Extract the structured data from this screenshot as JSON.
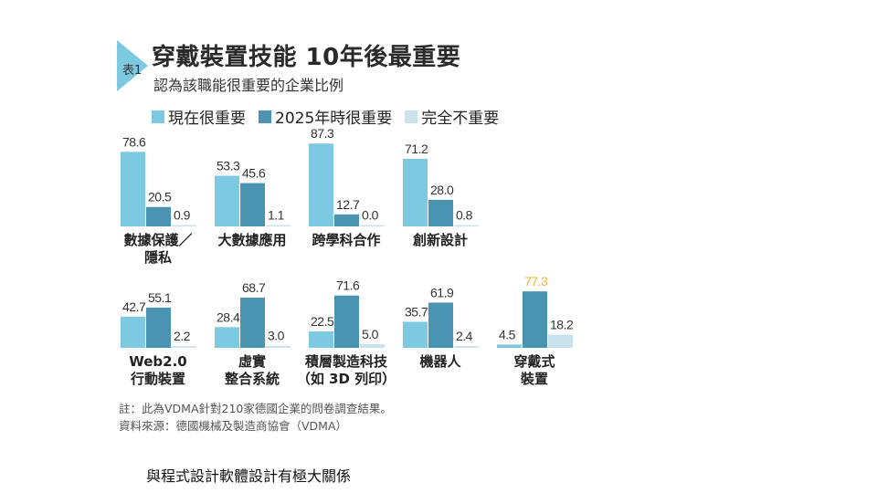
{
  "header": {
    "tag": "表1",
    "title": "穿戴裝置技能  10年後最重要",
    "subtitle": "認為該職能很重要的企業比例"
  },
  "colors": {
    "now": "#7dc9e2",
    "future": "#4a93b1",
    "none": "#c9e3ee",
    "highlight": "#f0b433",
    "arrow": "#7dc9e2"
  },
  "chart_data": {
    "type": "bar",
    "title": "穿戴裝置技能  10年後最重要",
    "subtitle": "認為該職能很重要的企業比例",
    "unit": "%",
    "ylim": [
      0,
      100
    ],
    "legend": [
      {
        "key": "now",
        "label": "現在很重要"
      },
      {
        "key": "future",
        "label": "2025年時很重要"
      },
      {
        "key": "none",
        "label": "完全不重要"
      }
    ],
    "series_names": [
      "現在很重要",
      "2025年時很重要",
      "完全不重要"
    ],
    "categories": [
      {
        "lines": [
          "數據保護／",
          "隱私"
        ],
        "values": [
          78.6,
          20.5,
          0.9
        ],
        "labels": [
          "78.6",
          "20.5",
          "0.9"
        ]
      },
      {
        "lines": [
          "大數據應用"
        ],
        "values": [
          53.3,
          45.6,
          1.1
        ],
        "labels": [
          "53.3",
          "45.6",
          "1.1"
        ]
      },
      {
        "lines": [
          "跨學科合作"
        ],
        "values": [
          87.3,
          12.7,
          0.0
        ],
        "labels": [
          "87.3",
          "12.7",
          "0.0"
        ]
      },
      {
        "lines": [
          "創新設計"
        ],
        "values": [
          71.2,
          28.0,
          0.8
        ],
        "labels": [
          "71.2",
          "28.0",
          "0.8"
        ]
      },
      {
        "lines": [
          "Web2.0",
          "行動裝置"
        ],
        "values": [
          42.7,
          55.1,
          2.2
        ],
        "labels": [
          "42.7",
          "55.1",
          "2.2"
        ]
      },
      {
        "lines": [
          "虛實",
          "整合系統"
        ],
        "values": [
          28.4,
          68.7,
          3.0
        ],
        "labels": [
          "28.4",
          "68.7",
          "3.0"
        ]
      },
      {
        "lines": [
          "積層製造科技",
          "（如 3D 列印）"
        ],
        "values": [
          22.5,
          71.6,
          5.0
        ],
        "labels": [
          "22.5",
          "71.6",
          "5.0"
        ]
      },
      {
        "lines": [
          "機器人"
        ],
        "values": [
          35.7,
          61.9,
          2.4
        ],
        "labels": [
          "35.7",
          "61.9",
          "2.4"
        ]
      },
      {
        "lines": [
          "穿戴式",
          "裝置"
        ],
        "values": [
          4.5,
          77.3,
          18.2
        ],
        "labels": [
          "4.5",
          "77.3",
          "18.2"
        ],
        "highlight_series": 1
      }
    ]
  },
  "notes": {
    "note": "註：此為VDMA針對210家德國企業的問卷調查結果。",
    "source": "資料來源：德國機械及製造商協會（VDMA）"
  },
  "caption": "與程式設計軟體設計有極大關係"
}
